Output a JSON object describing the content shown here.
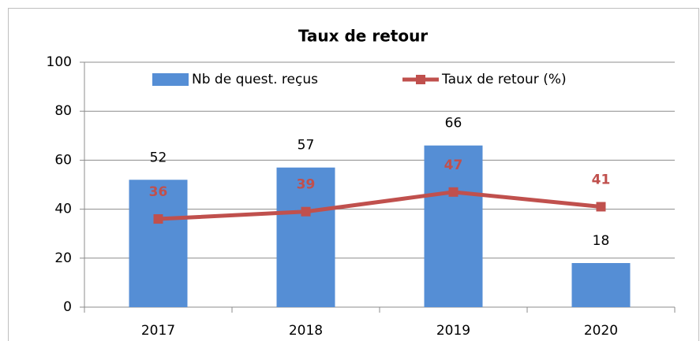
{
  "chart_data": {
    "type": "combo",
    "title": "Taux de retour",
    "categories": [
      "2017",
      "2018",
      "2019",
      "2020"
    ],
    "series": [
      {
        "name": "Nb de quest. reçus",
        "type": "bar",
        "color": "#558ed5",
        "values": [
          52,
          57,
          66,
          18
        ]
      },
      {
        "name": "Taux de retour (%)",
        "type": "line",
        "color": "#c0504d",
        "values": [
          36,
          39,
          47,
          41
        ]
      }
    ],
    "ylim": [
      0,
      100
    ],
    "yticks": [
      0,
      20,
      40,
      60,
      80,
      100
    ],
    "grid": true,
    "legend": "top"
  }
}
